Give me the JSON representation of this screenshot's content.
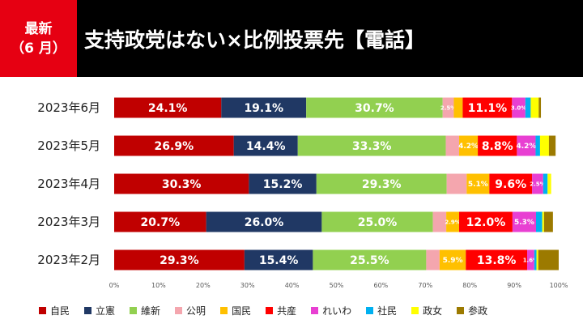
{
  "header": {
    "badge_line1": "最新",
    "badge_line2": "（6 月）",
    "title": "支持政党はない×比例投票先【電話】"
  },
  "chart_data": {
    "type": "bar",
    "orientation": "horizontal",
    "stacked": true,
    "categories": [
      "2023年6月",
      "2023年5月",
      "2023年4月",
      "2023年3月",
      "2023年2月"
    ],
    "xlim": [
      0,
      100
    ],
    "x_ticks": [
      "0%",
      "10%",
      "20%",
      "30%",
      "40%",
      "50%",
      "60%",
      "70%",
      "80%",
      "90%",
      "100%"
    ],
    "legend_position": "bottom",
    "series": [
      {
        "name": "自民",
        "color": "#c00000",
        "values": [
          24.1,
          26.9,
          30.3,
          20.7,
          29.3
        ],
        "labels": [
          "24.1%",
          "26.9%",
          "30.3%",
          "20.7%",
          "29.3%"
        ]
      },
      {
        "name": "立憲",
        "color": "#203864",
        "values": [
          19.1,
          14.4,
          15.2,
          26.0,
          15.4
        ],
        "labels": [
          "19.1%",
          "14.4%",
          "15.2%",
          "26.0%",
          "15.4%"
        ]
      },
      {
        "name": "維新",
        "color": "#92d050",
        "values": [
          30.7,
          33.3,
          29.3,
          25.0,
          25.5
        ],
        "labels": [
          "30.7%",
          "33.3%",
          "29.3%",
          "25.0%",
          "25.5%"
        ]
      },
      {
        "name": "公明",
        "color": "#f4a6ae",
        "values": [
          2.5,
          3.0,
          4.5,
          3.0,
          3.0
        ],
        "labels": [
          "2.5%",
          "",
          "",
          "",
          ""
        ]
      },
      {
        "name": "国民",
        "color": "#ffc000",
        "values": [
          2.0,
          4.2,
          5.1,
          2.9,
          5.9
        ],
        "labels": [
          "",
          "4.2%",
          "5.1%",
          "2.9%",
          "5.9%"
        ]
      },
      {
        "name": "共産",
        "color": "#ff0000",
        "values": [
          11.1,
          8.8,
          9.6,
          12.0,
          13.8
        ],
        "labels": [
          "11.1%",
          "8.8%",
          "9.6%",
          "12.0%",
          "13.8%"
        ]
      },
      {
        "name": "れいわ",
        "color": "#e83fd2",
        "values": [
          3.0,
          4.2,
          2.5,
          5.3,
          1.6
        ],
        "labels": [
          "3.0%",
          "4.2%",
          "2.5%",
          "5.3%",
          "1.6%"
        ]
      },
      {
        "name": "社民",
        "color": "#00b0f0",
        "values": [
          1.2,
          1.0,
          1.0,
          1.4,
          0.5
        ],
        "labels": [
          "",
          "",
          "",
          "",
          ""
        ]
      },
      {
        "name": "政女",
        "color": "#ffff00",
        "values": [
          1.8,
          2.0,
          0.8,
          0.4,
          0.4
        ],
        "labels": [
          "",
          "",
          "",
          "",
          ""
        ]
      },
      {
        "name": "参政",
        "color": "#9c7a00",
        "values": [
          0.5,
          1.5,
          0.0,
          2.0,
          4.6
        ],
        "labels": [
          "",
          "",
          "",
          "",
          ""
        ]
      }
    ]
  }
}
